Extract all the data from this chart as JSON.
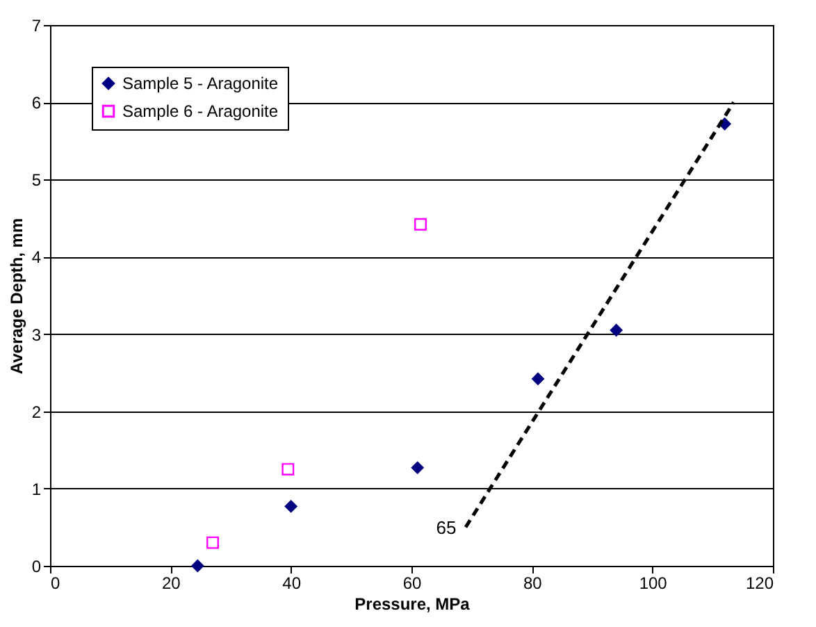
{
  "chart_data": {
    "type": "scatter",
    "xlabel": "Pressure, MPa",
    "ylabel": "Average Depth, mm",
    "xlim": [
      0,
      120
    ],
    "xticks": [
      0,
      20,
      40,
      60,
      80,
      100,
      120
    ],
    "ylim": [
      0,
      7
    ],
    "yticks": [
      0,
      1,
      2,
      3,
      4,
      5,
      6,
      7
    ],
    "grid": "y",
    "legend": "top left",
    "series": [
      {
        "name": "Sample 5 - Aragonite",
        "color": "#000080",
        "marker": "diamond",
        "x": [
          24.5,
          40,
          61,
          81,
          94,
          112
        ],
        "values": [
          0,
          0.77,
          1.27,
          2.42,
          3.05,
          5.72
        ]
      },
      {
        "name": "Sample 6 - Aragonite",
        "color": "#ff00ff",
        "marker": "square",
        "x": [
          27,
          39.5,
          61.5
        ],
        "values": [
          0.3,
          1.25,
          4.42
        ]
      },
      {
        "type": "line",
        "color": "#000000",
        "line_style": "dashed",
        "marker": "none",
        "x": [
          69,
          113.5
        ],
        "values": [
          0.5,
          6
        ]
      }
    ],
    "annotations": [
      "65"
    ]
  }
}
